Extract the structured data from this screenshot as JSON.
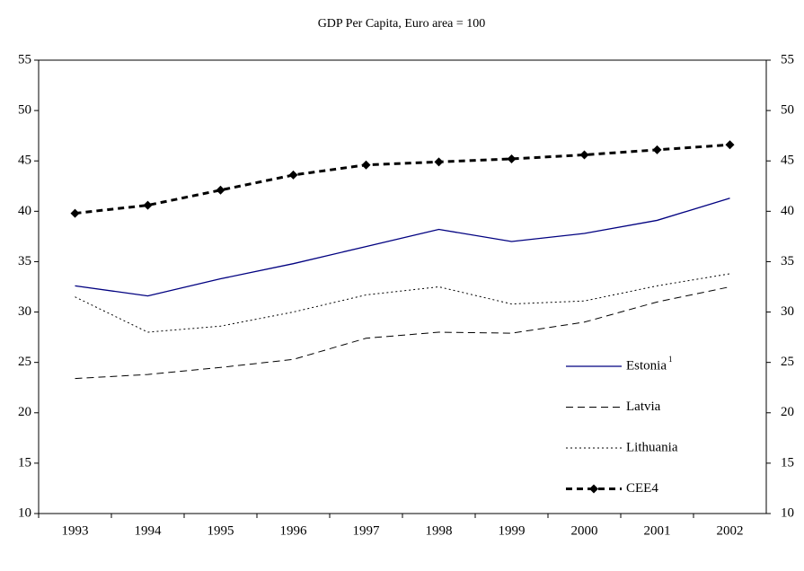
{
  "chart_data": {
    "type": "line",
    "title": "GDP Per Capita, Euro area = 100",
    "categories": [
      "1993",
      "1994",
      "1995",
      "1996",
      "1997",
      "1998",
      "1999",
      "2000",
      "2001",
      "2002"
    ],
    "series": [
      {
        "name": "Estonia",
        "footnote": "1",
        "color": "#000080",
        "style": "solid",
        "values": [
          32.6,
          31.6,
          33.3,
          34.8,
          36.5,
          38.2,
          37.0,
          37.8,
          39.1,
          41.3
        ]
      },
      {
        "name": "Latvia",
        "color": "#000000",
        "style": "dashed",
        "values": [
          23.4,
          23.8,
          24.5,
          25.3,
          27.4,
          28.0,
          27.9,
          29.0,
          31.0,
          32.5
        ]
      },
      {
        "name": "Lithuania",
        "color": "#000000",
        "style": "dotted",
        "values": [
          31.5,
          28.0,
          28.6,
          30.0,
          31.7,
          32.5,
          30.8,
          31.1,
          32.6,
          33.8
        ]
      },
      {
        "name": "CEE4",
        "color": "#000000",
        "style": "bold-dashed",
        "marker": "diamond",
        "values": [
          39.8,
          40.6,
          42.1,
          43.6,
          44.6,
          44.9,
          45.2,
          45.6,
          46.1,
          46.6
        ]
      }
    ],
    "ylim": [
      10,
      55
    ],
    "yticks": [
      10,
      15,
      20,
      25,
      30,
      35,
      40,
      45,
      50,
      55
    ],
    "y2lim": [
      10,
      55
    ],
    "y2ticks": [
      10,
      15,
      20,
      25,
      30,
      35,
      40,
      45,
      50,
      55
    ],
    "grid": false,
    "legend": "lower right"
  }
}
